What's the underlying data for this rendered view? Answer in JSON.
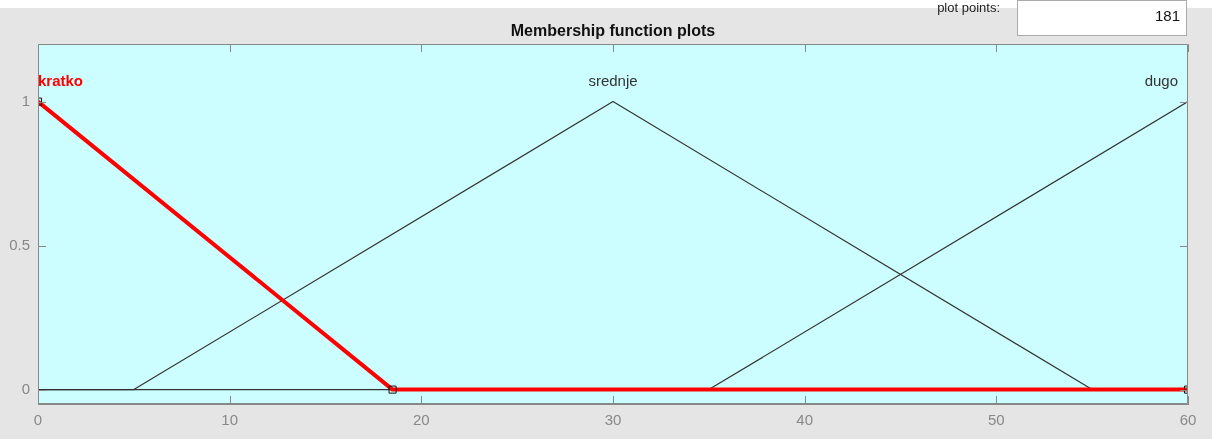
{
  "chart_data": {
    "type": "line",
    "title": "Membership function plots",
    "annotations": [
      "plot points:",
      "181"
    ],
    "series": [
      {
        "name": "kratko",
        "color": "#ff0000",
        "x": [
          0,
          18.5,
          60
        ],
        "values": [
          1,
          0,
          0
        ],
        "marker": "square"
      },
      {
        "name": "srednje",
        "color": "#333333",
        "x": [
          0,
          5,
          30,
          55,
          60
        ],
        "values": [
          0,
          0,
          1,
          0,
          0
        ]
      },
      {
        "name": "dugo",
        "color": "#333333",
        "x": [
          0,
          35,
          60
        ],
        "values": [
          0,
          0,
          1
        ]
      }
    ],
    "xlim": [
      0,
      60
    ],
    "xticks": [
      0,
      10,
      20,
      30,
      40,
      50,
      60
    ],
    "ylim": [
      -0.05,
      1.2
    ],
    "yticks": [
      0,
      0.5,
      1
    ],
    "grid": false,
    "legend": false
  }
}
